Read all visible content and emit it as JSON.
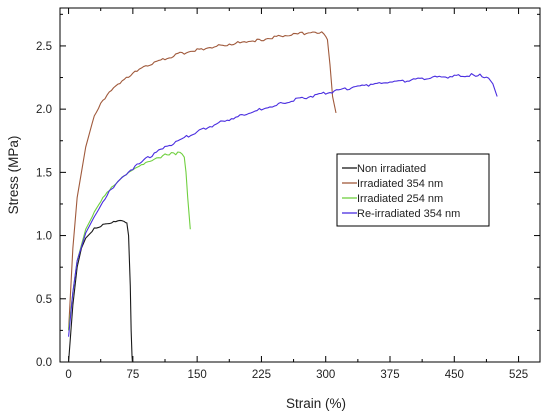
{
  "chart_data": {
    "type": "line",
    "xlabel": "Strain (%)",
    "ylabel": "Stress (MPa)",
    "xlim": [
      -10,
      550
    ],
    "ylim": [
      0,
      2.8
    ],
    "x_ticks": [
      "0",
      "75",
      "150",
      "225",
      "300",
      "375",
      "450",
      "525"
    ],
    "y_ticks": [
      "0.0",
      "0.5",
      "1.0",
      "1.5",
      "2.0",
      "2.5"
    ],
    "legend_position": "center-right",
    "grid": false,
    "series": [
      {
        "name": "Non irradiated",
        "color": "#1a1a1a",
        "x": [
          0,
          5,
          10,
          15,
          20,
          30,
          40,
          50,
          60,
          65,
          68,
          70,
          72,
          73,
          74,
          74.5
        ],
        "y": [
          0,
          0.45,
          0.75,
          0.9,
          0.98,
          1.05,
          1.09,
          1.11,
          1.125,
          1.12,
          1.1,
          1.0,
          0.6,
          0.25,
          0.05,
          0
        ]
      },
      {
        "name": "Irradiated 354 nm",
        "color": "#a05a3c",
        "x": [
          0,
          5,
          10,
          20,
          30,
          40,
          50,
          75,
          100,
          125,
          150,
          175,
          200,
          225,
          250,
          275,
          290,
          298,
          302,
          305,
          308,
          312
        ],
        "y": [
          0.25,
          0.9,
          1.3,
          1.7,
          1.95,
          2.07,
          2.15,
          2.28,
          2.37,
          2.43,
          2.47,
          2.5,
          2.53,
          2.55,
          2.58,
          2.6,
          2.61,
          2.6,
          2.55,
          2.35,
          2.1,
          1.97
        ]
      },
      {
        "name": "Irradiated 254 nm",
        "color": "#70d040",
        "x": [
          0,
          5,
          10,
          20,
          30,
          40,
          50,
          60,
          75,
          90,
          100,
          115,
          125,
          130,
          135,
          137,
          139,
          142
        ],
        "y": [
          0.25,
          0.55,
          0.8,
          1.05,
          1.18,
          1.29,
          1.38,
          1.45,
          1.53,
          1.58,
          1.61,
          1.64,
          1.65,
          1.65,
          1.62,
          1.5,
          1.3,
          1.05
        ]
      },
      {
        "name": "Re-irradiated 354 nm",
        "color": "#4a2ee0",
        "x": [
          0,
          5,
          10,
          20,
          30,
          40,
          50,
          75,
          100,
          125,
          150,
          175,
          200,
          225,
          250,
          275,
          300,
          325,
          350,
          375,
          400,
          425,
          450,
          470,
          480,
          490,
          495,
          500
        ],
        "y": [
          0.2,
          0.55,
          0.8,
          1.02,
          1.15,
          1.27,
          1.37,
          1.53,
          1.65,
          1.74,
          1.82,
          1.89,
          1.95,
          2.0,
          2.05,
          2.09,
          2.13,
          2.16,
          2.19,
          2.21,
          2.23,
          2.25,
          2.26,
          2.27,
          2.27,
          2.25,
          2.2,
          2.1
        ]
      }
    ]
  }
}
